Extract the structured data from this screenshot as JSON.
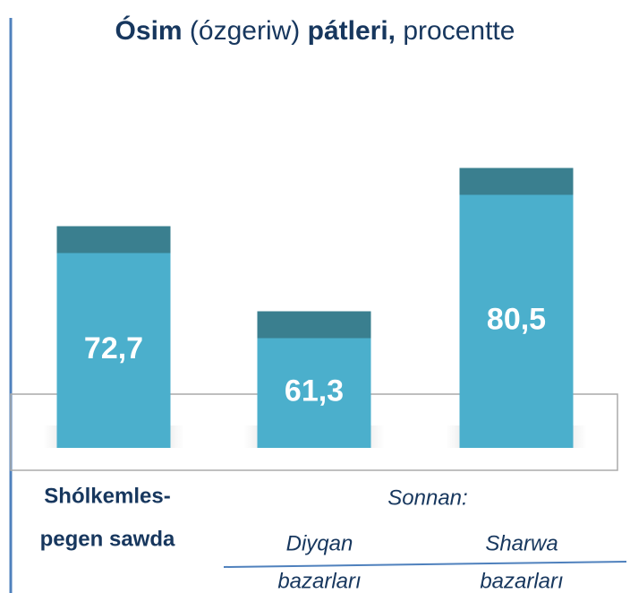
{
  "chart_data": {
    "type": "bar",
    "title": [
      "Ósim",
      "(ózgeriw)",
      "pátleri,",
      "procentte"
    ],
    "categories": [
      [
        "Shólkemles-",
        "pegen sawda"
      ],
      [
        "Diyqan",
        "bazarları"
      ],
      [
        "Sharwa",
        "bazarları"
      ]
    ],
    "annotation": "Sonnan:",
    "values": [
      72.7,
      61.3,
      80.5
    ],
    "value_labels": [
      "72,7",
      "61,3",
      "80,5"
    ],
    "color": "#4bafcc",
    "ylim": [
      43,
      85
    ]
  }
}
